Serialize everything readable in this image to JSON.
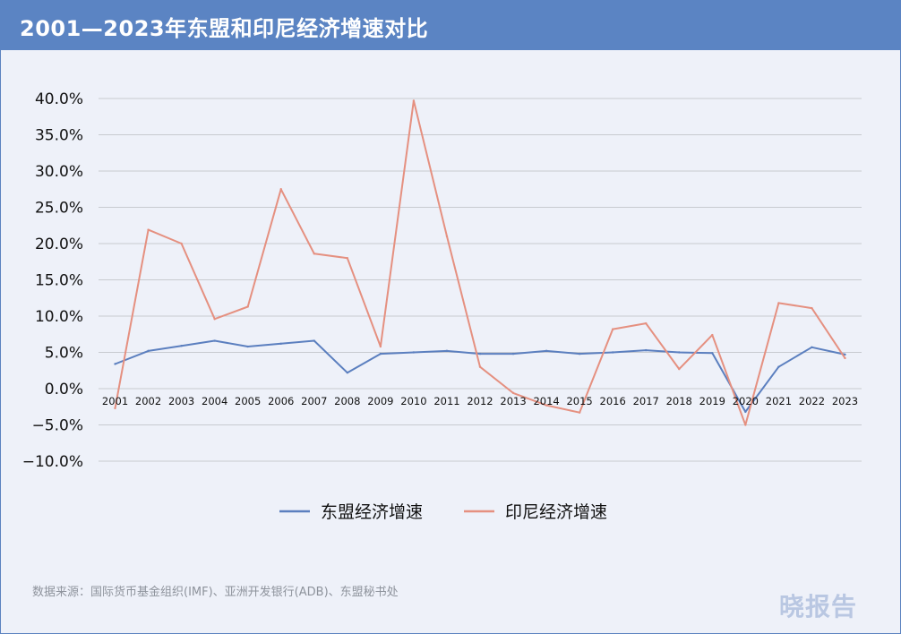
{
  "header": {
    "title": "2001—2023年东盟和印尼经济增速对比"
  },
  "footer": {
    "source": "数据来源：国际货币基金组织(IMF)、亚洲开发银行(ADB)、东盟秘书处",
    "brand": "晓报告"
  },
  "colors": {
    "asean": "#5b7fbf",
    "indonesia": "#e59080",
    "grid": "#c8cad0",
    "title_bg": "#5b84c3"
  },
  "chart_data": {
    "type": "line",
    "title": "2001—2023年东盟和印尼经济增速对比",
    "x": [
      "2001",
      "2002",
      "2003",
      "2004",
      "2005",
      "2006",
      "2007",
      "2008",
      "2009",
      "2010",
      "2011",
      "2012",
      "2013",
      "2014",
      "2015",
      "2016",
      "2017",
      "2018",
      "2019",
      "2020",
      "2021",
      "2022",
      "2023"
    ],
    "ylim": [
      -10,
      40
    ],
    "yticks": [
      "40.0%",
      "35.0%",
      "30.0%",
      "25.0%",
      "20.0%",
      "15.0%",
      "10.0%",
      "5.0%",
      "0.0%",
      "−5.0%",
      "−10.0%"
    ],
    "ytick_values": [
      40,
      35,
      30,
      25,
      20,
      15,
      10,
      5,
      0,
      -5,
      -10
    ],
    "grid": true,
    "legend_position": "bottom",
    "series": [
      {
        "name": "东盟经济增速",
        "values": [
          3.4,
          5.2,
          5.9,
          6.6,
          5.8,
          6.2,
          6.6,
          2.2,
          4.8,
          5.0,
          5.2,
          4.8,
          4.8,
          5.2,
          4.8,
          5.0,
          5.3,
          5.0,
          4.9,
          -3.2,
          3.0,
          5.7,
          4.7
        ]
      },
      {
        "name": "印尼经济增速",
        "values": [
          -2.7,
          21.9,
          20.0,
          9.6,
          11.3,
          27.5,
          18.6,
          18.0,
          5.8,
          39.7,
          21.0,
          3.0,
          -0.6,
          -2.3,
          -3.3,
          8.2,
          9.0,
          2.7,
          7.4,
          -5.0,
          11.8,
          11.1,
          4.2
        ]
      }
    ]
  }
}
